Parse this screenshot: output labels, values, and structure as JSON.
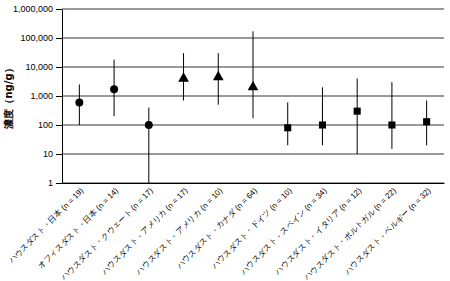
{
  "chart_data": {
    "type": "scatter",
    "y_label": "濃度（ng/g）",
    "categories": [
      "ハウスダスト・日本 (n = 19)",
      "オフィスダスト・日本 (n = 14)",
      "ハウスダスト・クウェート (n = 17)",
      "ハウスダスト・アメリカ (n = 17)",
      "ハウスダスト・アメリカ (n = 10)",
      "ハウスダスト・カナダ (n = 64)",
      "ハウスダスト・ドイツ (n = 10)",
      "ハウスダスト・スペイン (n = 34)",
      "ハウスダスト・イタリア (n = 12)",
      "ハウスダスト・ポルトガル (n = 22)",
      "ハウスダスト・ベルギー (n = 32)"
    ],
    "series": [
      {
        "marker": "circle",
        "color": "#000000",
        "values": [
          600,
          1700,
          100,
          null,
          null,
          null,
          null,
          null,
          null,
          null,
          null
        ],
        "low": [
          100,
          200,
          1,
          null,
          null,
          null,
          null,
          null,
          null,
          null,
          null
        ],
        "high": [
          2500,
          18000,
          400,
          null,
          null,
          null,
          null,
          null,
          null,
          null,
          null
        ]
      },
      {
        "marker": "triangle",
        "color": "#000000",
        "values": [
          null,
          null,
          null,
          4000,
          4500,
          2000,
          null,
          null,
          null,
          null,
          null
        ],
        "low": [
          null,
          null,
          null,
          700,
          500,
          170,
          null,
          null,
          null,
          null,
          null
        ],
        "high": [
          null,
          null,
          null,
          30000,
          30000,
          170000,
          null,
          null,
          null,
          null,
          null
        ]
      },
      {
        "marker": "square",
        "color": "#000000",
        "values": [
          null,
          null,
          null,
          null,
          null,
          null,
          80,
          100,
          300,
          100,
          130
        ],
        "low": [
          null,
          null,
          null,
          null,
          null,
          null,
          20,
          20,
          10,
          15,
          20
        ],
        "high": [
          null,
          null,
          null,
          null,
          null,
          null,
          600,
          2000,
          4000,
          3000,
          700
        ]
      }
    ],
    "log": "y",
    "ylim": [
      1,
      1000000
    ],
    "yticks": [
      1,
      10,
      100,
      {
        "value": 1000,
        "label": "1,000"
      },
      {
        "value": 10000,
        "label": "10,000"
      },
      {
        "value": 100000,
        "label": "100,000"
      },
      {
        "value": 1000000,
        "label": "1,000,000"
      }
    ],
    "grid": true
  }
}
